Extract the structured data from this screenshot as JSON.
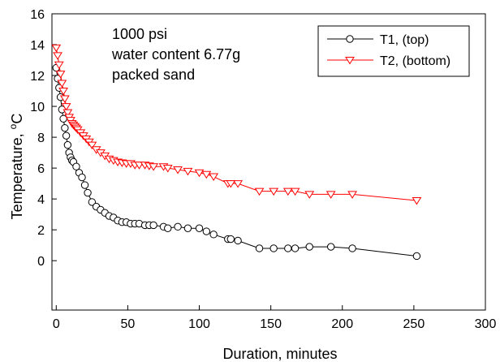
{
  "chart_data": {
    "type": "line",
    "title": "",
    "xlabel": "Duration, minutes",
    "ylabel_prefix": "Temperature, ",
    "ylabel_unit_sup": "o",
    "ylabel_unit": "C",
    "xlim": [
      -3,
      300
    ],
    "ylim": [
      -3.2,
      16
    ],
    "xticks": [
      0,
      50,
      100,
      150,
      200,
      250,
      300
    ],
    "yticks": [
      0,
      2,
      4,
      6,
      8,
      10,
      12,
      14,
      16
    ],
    "grid": false,
    "legend_position": "top-right",
    "annotations": [
      "1000 psi",
      "water content 6.77g",
      "packed sand"
    ],
    "series": [
      {
        "name": "T1, (top)",
        "color": "#000000",
        "marker": "circle",
        "x": [
          0,
          1,
          2,
          3,
          4,
          5,
          6,
          7,
          8,
          9,
          10,
          11,
          12,
          14,
          16,
          18,
          20,
          22,
          25,
          28,
          31,
          34,
          37,
          40,
          43,
          46,
          49,
          52,
          55,
          58,
          62,
          65,
          68,
          75,
          78,
          85,
          92,
          100,
          105,
          110,
          120,
          122,
          127,
          142,
          152,
          162,
          167,
          177,
          192,
          207,
          252
        ],
        "y": [
          12.5,
          11.8,
          11.2,
          10.6,
          9.8,
          9.2,
          8.6,
          8.1,
          7.5,
          7.0,
          6.7,
          6.5,
          6.4,
          6.1,
          5.7,
          5.4,
          4.9,
          4.4,
          3.8,
          3.5,
          3.3,
          3.1,
          2.9,
          2.8,
          2.6,
          2.5,
          2.5,
          2.4,
          2.4,
          2.4,
          2.3,
          2.3,
          2.3,
          2.2,
          2.1,
          2.2,
          2.1,
          2.1,
          1.9,
          1.7,
          1.4,
          1.4,
          1.3,
          0.8,
          0.8,
          0.8,
          0.8,
          0.9,
          0.9,
          0.8,
          0.3
        ]
      },
      {
        "name": "T2, (bottom)",
        "color": "#ff0000",
        "marker": "triangle-down",
        "x": [
          0,
          1,
          2,
          3,
          4,
          5,
          6,
          7,
          8,
          9,
          10,
          11,
          12,
          13,
          14,
          15,
          17,
          19,
          21,
          23,
          25,
          28,
          31,
          34,
          37,
          40,
          43,
          46,
          49,
          52,
          55,
          58,
          62,
          65,
          68,
          75,
          78,
          85,
          92,
          100,
          105,
          110,
          120,
          122,
          127,
          142,
          152,
          162,
          167,
          177,
          192,
          207,
          252
        ],
        "y": [
          13.8,
          13.3,
          12.7,
          12.1,
          11.5,
          11.0,
          10.5,
          10.0,
          9.6,
          9.3,
          9.1,
          8.9,
          8.8,
          8.7,
          8.6,
          8.5,
          8.3,
          8.1,
          7.9,
          7.7,
          7.5,
          7.2,
          7.0,
          6.8,
          6.6,
          6.5,
          6.4,
          6.35,
          6.3,
          6.3,
          6.2,
          6.2,
          6.2,
          6.15,
          6.1,
          6.1,
          6.0,
          5.9,
          5.8,
          5.7,
          5.6,
          5.45,
          5.0,
          5.0,
          5.0,
          4.5,
          4.5,
          4.5,
          4.5,
          4.3,
          4.3,
          4.3,
          3.9
        ]
      }
    ]
  }
}
